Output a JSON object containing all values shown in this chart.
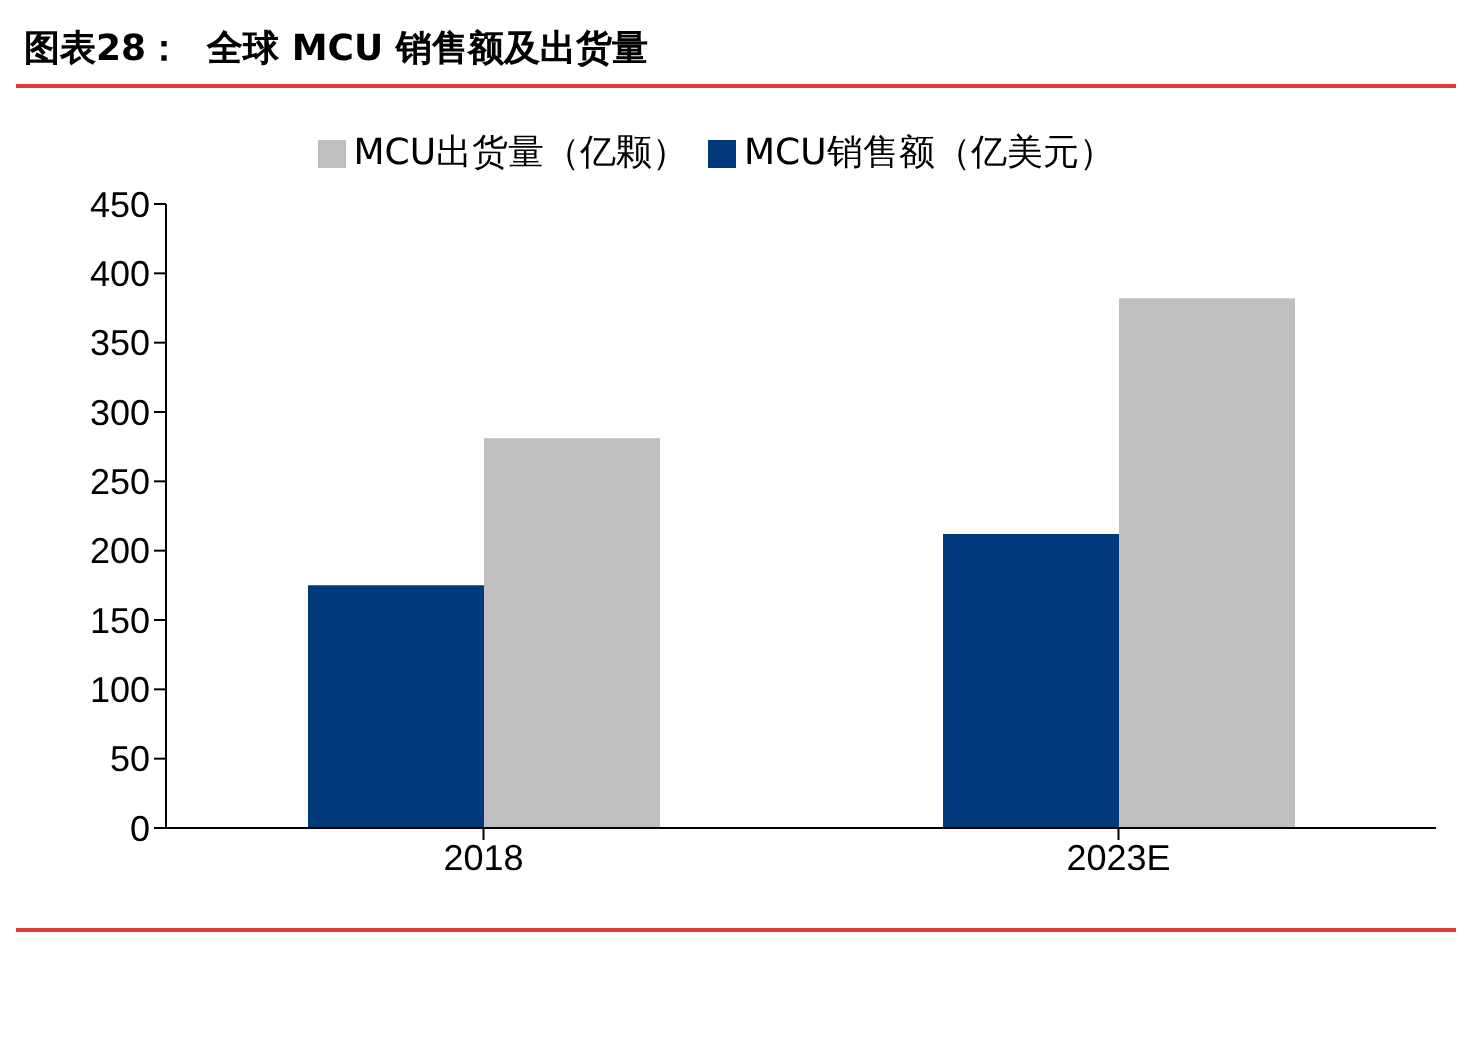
{
  "chart_data": {
    "type": "bar",
    "title": "图表28：  全球 MCU 销售额及出货量",
    "categories": [
      "2018",
      "2023E"
    ],
    "series": [
      {
        "name": "MCU销售额（亿美元）",
        "color": "#003a7d",
        "values": [
          175,
          212
        ]
      },
      {
        "name": "MCU出货量（亿颗）",
        "color": "#bfbfbf",
        "values": [
          281,
          382
        ]
      }
    ],
    "ylim": [
      0,
      450
    ],
    "yticks": [
      0,
      50,
      100,
      150,
      200,
      250,
      300,
      350,
      400,
      450
    ],
    "grid": false,
    "legend": "top"
  }
}
